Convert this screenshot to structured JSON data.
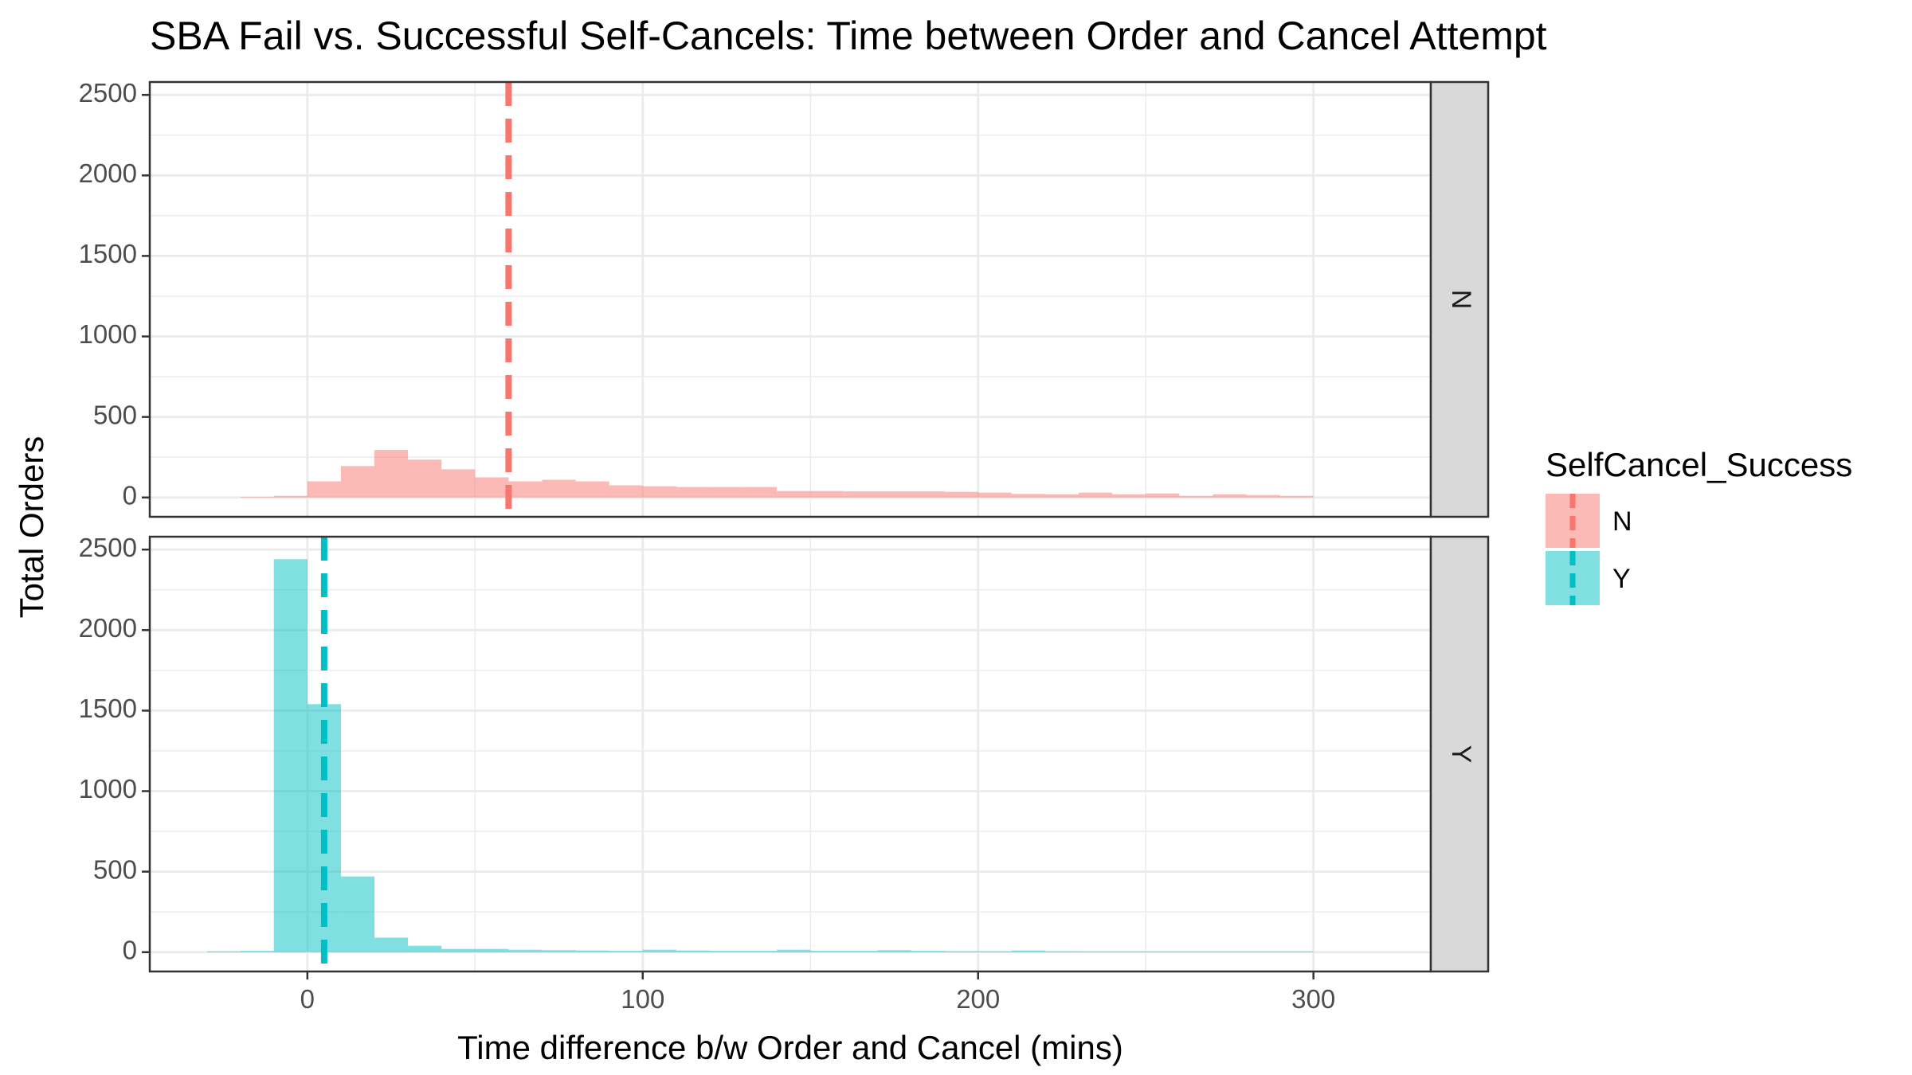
{
  "chart_data": {
    "type": "bar",
    "title": "SBA Fail vs. Successful Self-Cancels: Time between Order and Cancel Attempt",
    "xlabel": "Time difference b/w Order and Cancel (mins)",
    "ylabel": "Total Orders",
    "xlim": [
      -47,
      335
    ],
    "ylim": [
      -120,
      2580
    ],
    "x_ticks": [
      0,
      100,
      200,
      300
    ],
    "y_ticks": [
      0,
      500,
      1000,
      1500,
      2000,
      2500
    ],
    "grid": true,
    "bin_width": 10,
    "facets": [
      "N",
      "Y"
    ],
    "legend": {
      "title": "SelfCancel_Success",
      "placement": "right",
      "items": [
        "N",
        "Y"
      ]
    },
    "colors": {
      "N": "#F8766D",
      "Y": "#00BFC4"
    },
    "series": [
      {
        "name": "N",
        "x": [
          -15,
          -5,
          5,
          15,
          25,
          35,
          45,
          55,
          65,
          75,
          85,
          95,
          105,
          115,
          125,
          135,
          145,
          155,
          165,
          175,
          185,
          195,
          205,
          215,
          225,
          235,
          245,
          255,
          265,
          275,
          285,
          295
        ],
        "values": [
          4,
          10,
          100,
          195,
          295,
          235,
          175,
          125,
          100,
          110,
          100,
          75,
          70,
          65,
          65,
          65,
          40,
          40,
          38,
          38,
          38,
          35,
          30,
          22,
          20,
          30,
          20,
          25,
          10,
          20,
          15,
          10
        ],
        "mean_line": 60
      },
      {
        "name": "Y",
        "x": [
          -25,
          -15,
          -5,
          5,
          15,
          25,
          35,
          45,
          55,
          65,
          75,
          85,
          95,
          105,
          115,
          125,
          135,
          145,
          155,
          165,
          175,
          185,
          195,
          205,
          215,
          225,
          235,
          245,
          255,
          265,
          275,
          285,
          295
        ],
        "values": [
          5,
          8,
          2440,
          1540,
          470,
          90,
          40,
          20,
          20,
          15,
          12,
          10,
          8,
          15,
          10,
          8,
          8,
          15,
          8,
          8,
          12,
          8,
          6,
          6,
          10,
          6,
          5,
          5,
          5,
          5,
          5,
          5,
          5
        ],
        "mean_line": 5
      }
    ]
  }
}
